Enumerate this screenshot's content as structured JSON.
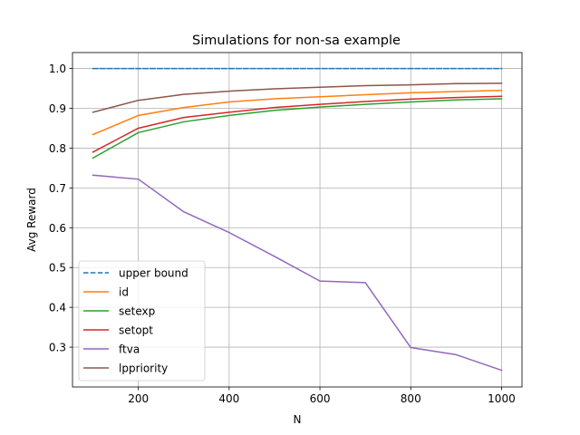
{
  "chart_data": {
    "type": "line",
    "title": "Simulations for non-sa example",
    "xlabel": "N",
    "ylabel": "Avg Reward",
    "xlim": [
      55,
      1045
    ],
    "ylim": [
      0.2,
      1.04
    ],
    "xticks": [
      200,
      400,
      600,
      800,
      1000
    ],
    "yticks": [
      0.3,
      0.4,
      0.5,
      0.6,
      0.7,
      0.8,
      0.9,
      1.0
    ],
    "xtick_labels": [
      "200",
      "400",
      "600",
      "800",
      "1000"
    ],
    "ytick_labels": [
      "0.3",
      "0.4",
      "0.5",
      "0.6",
      "0.7",
      "0.8",
      "0.9",
      "1.0"
    ],
    "grid": true,
    "legend_position": "lower-left",
    "x": [
      100,
      200,
      300,
      400,
      500,
      600,
      700,
      800,
      900,
      1000
    ],
    "series": [
      {
        "name": "upper bound",
        "color": "#1f77b4",
        "dashed": true,
        "values": [
          1.0,
          1.0,
          1.0,
          1.0,
          1.0,
          1.0,
          1.0,
          1.0,
          1.0,
          1.0
        ]
      },
      {
        "name": "id",
        "color": "#ff7f0e",
        "dashed": false,
        "values": [
          0.834,
          0.882,
          0.902,
          0.916,
          0.924,
          0.929,
          0.934,
          0.939,
          0.942,
          0.945
        ]
      },
      {
        "name": "setexp",
        "color": "#2ca02c",
        "dashed": false,
        "values": [
          0.775,
          0.839,
          0.866,
          0.882,
          0.895,
          0.903,
          0.91,
          0.916,
          0.921,
          0.924
        ]
      },
      {
        "name": "setopt",
        "color": "#d62728",
        "dashed": false,
        "values": [
          0.79,
          0.85,
          0.877,
          0.89,
          0.902,
          0.91,
          0.917,
          0.923,
          0.927,
          0.93
        ]
      },
      {
        "name": "ftva",
        "color": "#9467bd",
        "dashed": false,
        "values": [
          0.732,
          0.722,
          0.64,
          0.588,
          0.528,
          0.466,
          0.462,
          0.299,
          0.281,
          0.242
        ]
      },
      {
        "name": "lppriority",
        "color": "#8c564b",
        "dashed": false,
        "values": [
          0.89,
          0.92,
          0.935,
          0.943,
          0.949,
          0.953,
          0.957,
          0.959,
          0.962,
          0.963
        ]
      }
    ]
  }
}
